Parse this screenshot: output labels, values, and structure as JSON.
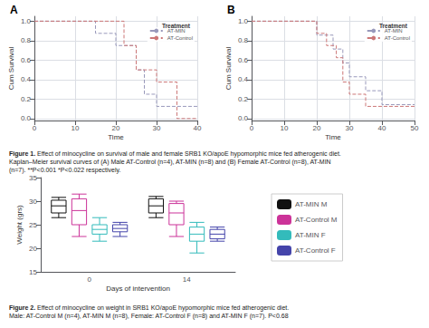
{
  "chart_data": [
    {
      "type": "line",
      "title": "A",
      "x_label": "Time",
      "y_label": "Cum Survival",
      "legend_title": "Treatment",
      "legend": "upper right",
      "grid": true,
      "xlim": [
        0,
        40
      ],
      "xticks": [
        0,
        10,
        20,
        30,
        40
      ],
      "ylim": [
        -0.02,
        1.05
      ],
      "yticks": [
        {
          "value": 0.0,
          "label": "0.0"
        },
        0.2,
        0.4,
        0.6,
        0.8,
        {
          "value": 1.0,
          "label": "1.0"
        }
      ],
      "series": [
        {
          "name": "AT-MIN",
          "color": "#9999bb",
          "line_style": "dashed",
          "x": [
            0,
            15,
            15,
            20,
            20,
            25,
            25,
            27,
            27,
            30,
            30,
            40
          ],
          "values": [
            1.0,
            1.0,
            0.875,
            0.875,
            0.75,
            0.75,
            0.5,
            0.5,
            0.25,
            0.25,
            0.125,
            0.125
          ]
        },
        {
          "name": "AT-Control",
          "color": "#cc7777",
          "line_style": "dashed",
          "x": [
            0,
            22,
            22,
            25,
            25,
            30,
            30,
            35,
            35,
            40
          ],
          "values": [
            1.0,
            1.0,
            0.75,
            0.75,
            0.5,
            0.5,
            0.375,
            0.375,
            0.0,
            0.0
          ]
        }
      ],
      "annotations": [
        "Figure 1.",
        " Effect of minocycline on survival of male and female SRB1 KO/apoE hypomorphic mice fed atherogenic diet.\nKaplan–Meier survival curves of (A) Male AT-Control (n=4), AT-MIN (n=8) and (B) Female AT-Control (n=8), AT-MIN\n(n=7). **P<0.001 *P<0.022 respectively."
      ]
    },
    {
      "type": "line",
      "title": "B",
      "x_label": "Time",
      "y_label": "Cum Survival",
      "legend_title": "Treatment",
      "legend": "upper right",
      "grid": true,
      "xlim": [
        0,
        50
      ],
      "xticks": [
        0,
        10,
        20,
        30,
        40,
        50
      ],
      "ylim": [
        -0.02,
        1.05
      ],
      "yticks": [
        {
          "value": 0.0,
          "label": "0.0"
        },
        0.2,
        0.4,
        0.6,
        0.8,
        {
          "value": 1.0,
          "label": "1.0"
        }
      ],
      "series": [
        {
          "name": "AT-MIN",
          "color": "#9999bb",
          "line_style": "dashed",
          "x": [
            0,
            20,
            20,
            25,
            25,
            28,
            28,
            30,
            30,
            35,
            35,
            40,
            40,
            50
          ],
          "values": [
            1.0,
            1.0,
            0.857,
            0.857,
            0.714,
            0.714,
            0.571,
            0.571,
            0.429,
            0.429,
            0.286,
            0.286,
            0.143,
            0.143
          ]
        },
        {
          "name": "AT-Control",
          "color": "#cc7777",
          "line_style": "dashed",
          "x": [
            0,
            20,
            20,
            23,
            23,
            26,
            26,
            28,
            28,
            30,
            30,
            35,
            35,
            50
          ],
          "values": [
            1.0,
            1.0,
            0.875,
            0.875,
            0.75,
            0.75,
            0.625,
            0.625,
            0.375,
            0.375,
            0.25,
            0.25,
            0.125,
            0.125
          ]
        }
      ]
    },
    {
      "type": "box",
      "x_label": "Days of intervention",
      "y_label": "Weight (grs)",
      "legend": "right",
      "grid": false,
      "categories": [
        "0",
        "14"
      ],
      "ylim": [
        15,
        35
      ],
      "yticks": [
        15,
        20,
        25,
        30,
        35
      ],
      "series": [
        {
          "name": "AT-MIN M",
          "color": "#111111",
          "values": [
            {
              "q1": 27.5,
              "median": 29.0,
              "q3": 30.2,
              "whislo": 26.5,
              "whishi": 30.8
            },
            {
              "q1": 27.5,
              "median": 29.0,
              "q3": 30.5,
              "whislo": 26.5,
              "whishi": 31.0
            }
          ]
        },
        {
          "name": "AT-Control M",
          "color": "#cc3399",
          "values": [
            {
              "q1": 25.0,
              "median": 28.0,
              "q3": 30.5,
              "whislo": 22.5,
              "whishi": 31.5
            },
            {
              "q1": 25.0,
              "median": 27.5,
              "q3": 29.5,
              "whislo": 22.5,
              "whishi": 30.0
            }
          ]
        },
        {
          "name": "AT-MIN F",
          "color": "#33bbbb",
          "values": [
            {
              "q1": 23.0,
              "median": 24.0,
              "q3": 25.0,
              "whislo": 21.5,
              "whishi": 26.5
            },
            {
              "q1": 21.5,
              "median": 23.0,
              "q3": 24.5,
              "whislo": 19.0,
              "whishi": 25.5
            }
          ]
        },
        {
          "name": "AT-Control F",
          "color": "#4444aa",
          "values": [
            {
              "q1": 23.5,
              "median": 24.2,
              "q3": 25.0,
              "whislo": 22.5,
              "whishi": 25.5
            },
            {
              "q1": 22.0,
              "median": 23.0,
              "q3": 24.0,
              "whislo": 21.5,
              "whishi": 24.5
            }
          ]
        }
      ],
      "annotations": [
        "Figure 2.",
        " Effect of minocycline on weight in SRB1 KO/apoE hypomorphic mice fed atherogenic diet.\nMale: AT-Control M (n=4), AT-MIN M (n=8), Female: AT-Control F (n=8) and AT-MIN F (n=7). P<0.68"
      ]
    }
  ]
}
